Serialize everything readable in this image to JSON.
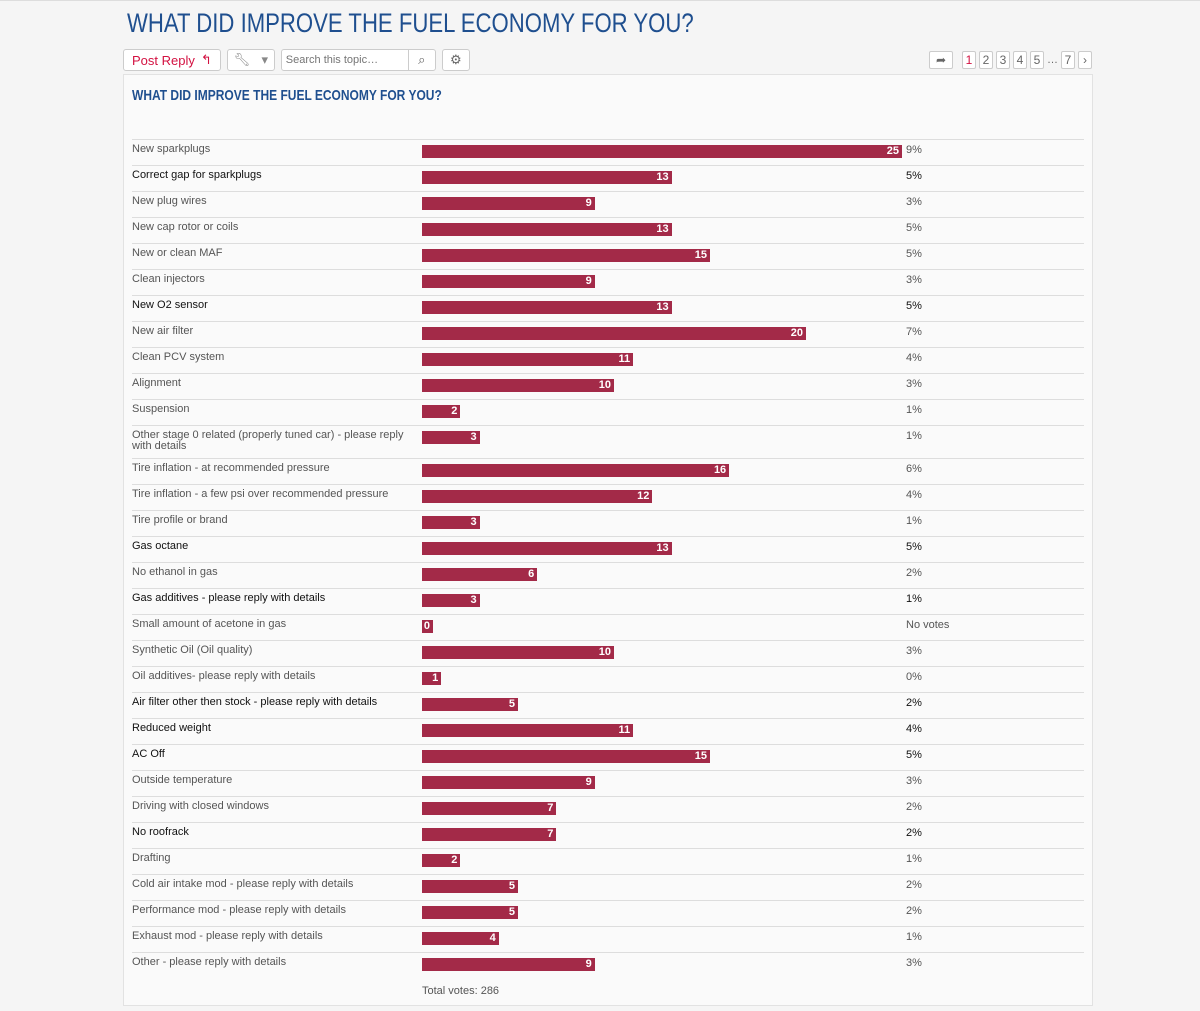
{
  "page_title": "WHAT DID IMPROVE THE FUEL ECONOMY FOR YOU?",
  "toolbar": {
    "post_reply": "Post Reply",
    "reply_icon": "reply-icon",
    "tools_icon": "wrench-icon",
    "search_placeholder": "Search this topic…",
    "search_icon": "search-icon",
    "settings_icon": "gear-icon"
  },
  "pagination": {
    "pages": [
      "1",
      "2",
      "3",
      "4",
      "5",
      "7"
    ],
    "current": "1",
    "ellipsis": "…",
    "next": "›"
  },
  "poll": {
    "title": "WHAT DID IMPROVE THE FUEL ECONOMY FOR YOU?",
    "bar_color": "#a32a48",
    "total": "Total votes: 286",
    "options": [
      {
        "label": "New sparkplugs",
        "votes": 25,
        "pct": "9%",
        "voted": false
      },
      {
        "label": "Correct gap for sparkplugs",
        "votes": 13,
        "pct": "5%",
        "voted": true
      },
      {
        "label": "New plug wires",
        "votes": 9,
        "pct": "3%",
        "voted": false
      },
      {
        "label": "New cap rotor or coils",
        "votes": 13,
        "pct": "5%",
        "voted": false
      },
      {
        "label": "New or clean MAF",
        "votes": 15,
        "pct": "5%",
        "voted": false
      },
      {
        "label": "Clean injectors",
        "votes": 9,
        "pct": "3%",
        "voted": false
      },
      {
        "label": "New O2 sensor",
        "votes": 13,
        "pct": "5%",
        "voted": true
      },
      {
        "label": "New air filter",
        "votes": 20,
        "pct": "7%",
        "voted": false
      },
      {
        "label": "Clean PCV system",
        "votes": 11,
        "pct": "4%",
        "voted": false
      },
      {
        "label": "Alignment",
        "votes": 10,
        "pct": "3%",
        "voted": false
      },
      {
        "label": "Suspension",
        "votes": 2,
        "pct": "1%",
        "voted": false
      },
      {
        "label": "Other stage 0 related (properly tuned car) - please reply with details",
        "votes": 3,
        "pct": "1%",
        "voted": false
      },
      {
        "label": "Tire inflation - at recommended pressure",
        "votes": 16,
        "pct": "6%",
        "voted": false
      },
      {
        "label": "Tire inflation - a few psi over recommended pressure",
        "votes": 12,
        "pct": "4%",
        "voted": false
      },
      {
        "label": "Tire profile or brand",
        "votes": 3,
        "pct": "1%",
        "voted": false
      },
      {
        "label": "Gas octane",
        "votes": 13,
        "pct": "5%",
        "voted": true
      },
      {
        "label": "No ethanol in gas",
        "votes": 6,
        "pct": "2%",
        "voted": false
      },
      {
        "label": "Gas additives - please reply with details",
        "votes": 3,
        "pct": "1%",
        "voted": true
      },
      {
        "label": "Small amount of acetone in gas",
        "votes": 0,
        "pct": "No votes",
        "voted": false
      },
      {
        "label": "Synthetic Oil (Oil quality)",
        "votes": 10,
        "pct": "3%",
        "voted": false
      },
      {
        "label": "Oil additives- please reply with details",
        "votes": 1,
        "pct": "0%",
        "voted": false
      },
      {
        "label": "Air filter other then stock - please reply with details",
        "votes": 5,
        "pct": "2%",
        "voted": true
      },
      {
        "label": "Reduced weight",
        "votes": 11,
        "pct": "4%",
        "voted": true
      },
      {
        "label": "AC Off",
        "votes": 15,
        "pct": "5%",
        "voted": true
      },
      {
        "label": "Outside temperature",
        "votes": 9,
        "pct": "3%",
        "voted": false
      },
      {
        "label": "Driving with closed windows",
        "votes": 7,
        "pct": "2%",
        "voted": false
      },
      {
        "label": "No roofrack",
        "votes": 7,
        "pct": "2%",
        "voted": true
      },
      {
        "label": "Drafting",
        "votes": 2,
        "pct": "1%",
        "voted": false
      },
      {
        "label": "Cold air intake mod - please reply with details",
        "votes": 5,
        "pct": "2%",
        "voted": false
      },
      {
        "label": "Performance mod - please reply with details",
        "votes": 5,
        "pct": "2%",
        "voted": false
      },
      {
        "label": "Exhaust mod - please reply with details",
        "votes": 4,
        "pct": "1%",
        "voted": false
      },
      {
        "label": "Other - please reply with details",
        "votes": 9,
        "pct": "3%",
        "voted": false
      }
    ]
  }
}
